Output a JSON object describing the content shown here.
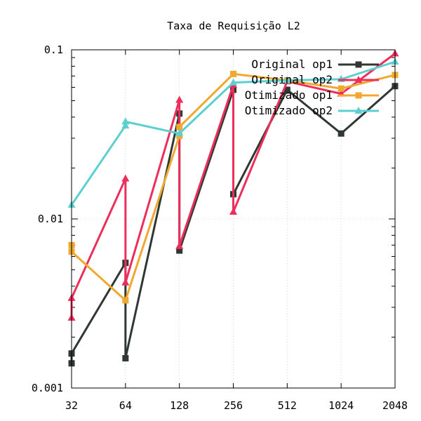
{
  "chart_data": {
    "type": "line",
    "title": "Taxa de Requisição L2",
    "xlabel": "",
    "ylabel": "",
    "x_scale": "category",
    "y_scale": "log",
    "ylim": [
      0.001,
      0.1
    ],
    "grid": true,
    "legend_position": "top-right",
    "x_tick_labels": [
      "32",
      "64",
      "128",
      "256",
      "512",
      "1024",
      "2048"
    ],
    "y_ticks": [
      {
        "value": 0.001,
        "label": "0.001"
      },
      {
        "value": 0.01,
        "label": "0.01"
      },
      {
        "value": 0.1,
        "label": "0.1"
      }
    ],
    "series": [
      {
        "name": "Original op1",
        "color": "#2f3833",
        "marker": "square",
        "points": [
          {
            "x": "32",
            "y": 0.0014
          },
          {
            "x": "32",
            "y": 0.0016
          },
          {
            "x": "64",
            "y": 0.0055
          },
          {
            "x": "64",
            "y": 0.0015
          },
          {
            "x": "128",
            "y": 0.042
          },
          {
            "x": "128",
            "y": 0.0065
          },
          {
            "x": "256",
            "y": 0.058
          },
          {
            "x": "256",
            "y": 0.014
          },
          {
            "x": "512",
            "y": 0.058
          },
          {
            "x": "1024",
            "y": 0.032
          },
          {
            "x": "2048",
            "y": 0.061
          }
        ]
      },
      {
        "name": "Original op2",
        "color": "#ee2e5a",
        "marker": "triangle",
        "points": [
          {
            "x": "32",
            "y": 0.0026
          },
          {
            "x": "32",
            "y": 0.0034
          },
          {
            "x": "64",
            "y": 0.0173
          },
          {
            "x": "64",
            "y": 0.0042
          },
          {
            "x": "128",
            "y": 0.0505
          },
          {
            "x": "128",
            "y": 0.0069
          },
          {
            "x": "256",
            "y": 0.062
          },
          {
            "x": "256",
            "y": 0.011
          },
          {
            "x": "512",
            "y": 0.065
          },
          {
            "x": "1024",
            "y": 0.055
          },
          {
            "x": "2048",
            "y": 0.095
          }
        ]
      },
      {
        "name": "Otimizado op1",
        "color": "#f0a830",
        "marker": "square",
        "points": [
          {
            "x": "32",
            "y": 0.007
          },
          {
            "x": "32",
            "y": 0.0064
          },
          {
            "x": "64",
            "y": 0.0033
          },
          {
            "x": "128",
            "y": 0.031
          },
          {
            "x": "128",
            "y": 0.035
          },
          {
            "x": "256",
            "y": 0.072
          },
          {
            "x": "512",
            "y": 0.066
          },
          {
            "x": "1024",
            "y": 0.059
          },
          {
            "x": "2048",
            "y": 0.071
          }
        ]
      },
      {
        "name": "Otimizado op2",
        "color": "#5ccfd0",
        "marker": "triangle",
        "points": [
          {
            "x": "32",
            "y": 0.0121
          },
          {
            "x": "64",
            "y": 0.0356
          },
          {
            "x": "64",
            "y": 0.0376
          },
          {
            "x": "128",
            "y": 0.032
          },
          {
            "x": "256",
            "y": 0.064
          },
          {
            "x": "512",
            "y": 0.066
          },
          {
            "x": "1024",
            "y": 0.067
          },
          {
            "x": "2048",
            "y": 0.085
          }
        ]
      }
    ]
  }
}
